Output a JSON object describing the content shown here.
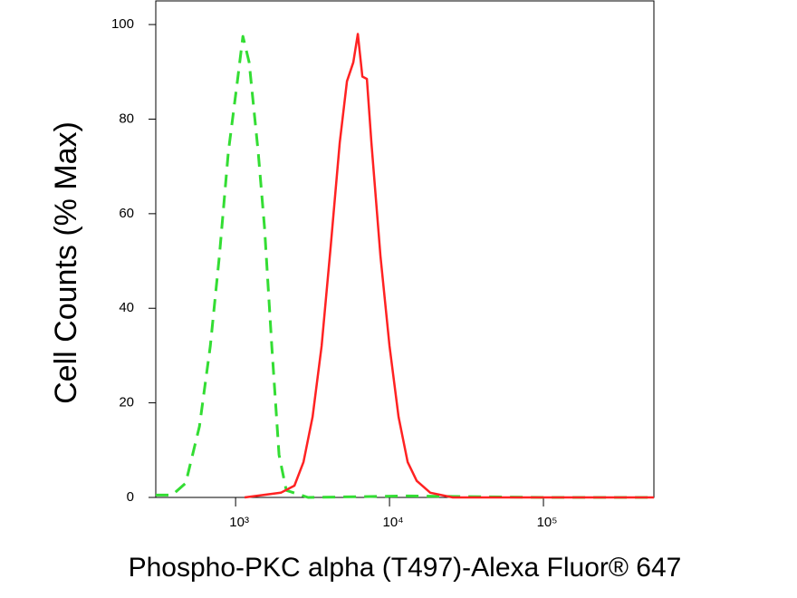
{
  "chart_data": {
    "type": "line",
    "x_label": "Phospho-PKC alpha (T497)-Alexa Fluor® 647",
    "y_label": "Cell Counts (% Max)",
    "log_x": true,
    "xlim": [
      303,
      522000
    ],
    "xticks": [
      {
        "value": 1000,
        "label": "10³"
      },
      {
        "value": 10000,
        "label": "10⁴"
      },
      {
        "value": 100000,
        "label": "10⁵"
      }
    ],
    "ylim": [
      0,
      105
    ],
    "yticks": [
      0,
      20,
      40,
      60,
      80,
      100
    ],
    "grid": false,
    "series": [
      {
        "color": "#33dd33",
        "dashed": true,
        "x": [
          303,
          387,
          474,
          582,
          685,
          784,
          897,
          1027,
          1115,
          1225,
          1403,
          1543,
          1719,
          1916,
          2135,
          2956,
          13110,
          100000,
          522000
        ],
        "values": [
          0.5,
          0.5,
          3,
          15,
          32,
          51,
          73,
          88,
          97.5,
          92,
          73,
          57,
          32,
          9,
          1.5,
          0,
          0.3,
          0,
          0
        ]
      },
      {
        "color": "#ff2222",
        "dashed": false,
        "x": [
          1145,
          1501,
          1968,
          2410,
          2760,
          3162,
          3620,
          4147,
          4746,
          5290,
          5820,
          6225,
          6665,
          7130,
          7625,
          8730,
          10000,
          11450,
          13110,
          15010,
          18400,
          25800,
          522000
        ],
        "values": [
          0,
          0.5,
          1,
          2.5,
          7.5,
          17,
          32,
          53,
          75,
          88,
          92,
          98,
          89,
          88.5,
          75,
          51,
          32,
          17,
          7.5,
          3.5,
          1,
          0,
          0
        ]
      }
    ]
  }
}
